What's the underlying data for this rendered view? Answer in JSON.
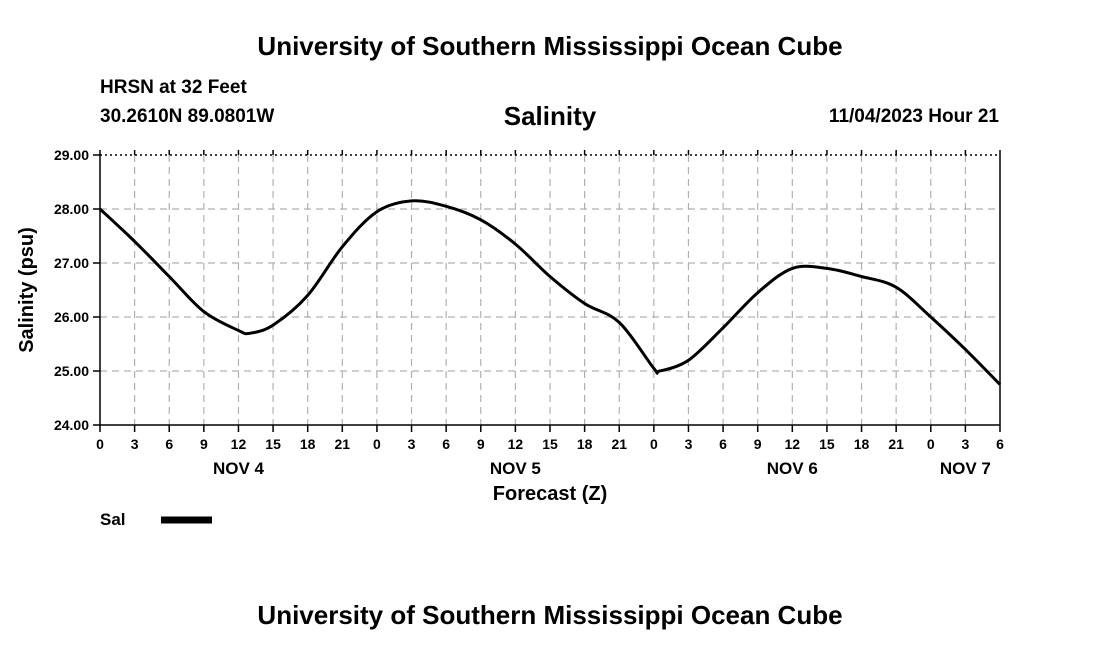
{
  "header": {
    "title": "University of Southern Mississippi Ocean Cube",
    "station": "HRSN at 32 Feet",
    "coords": "30.2610N  89.0801W",
    "timestamp": "11/04/2023 Hour 21"
  },
  "footer": {
    "title": "University of Southern Mississippi Ocean Cube"
  },
  "chart_data": {
    "type": "line",
    "title": "Salinity",
    "xlabel": "Forecast (Z)",
    "ylabel": "Salinity (psu)",
    "ylim": [
      24.0,
      29.0
    ],
    "yticks": [
      "24.00",
      "25.00",
      "26.00",
      "27.00",
      "28.00",
      "29.00"
    ],
    "xlim_hours": [
      0,
      78
    ],
    "x_tick_labels": [
      "0",
      "3",
      "6",
      "9",
      "12",
      "15",
      "18",
      "21",
      "0",
      "3",
      "6",
      "9",
      "12",
      "15",
      "18",
      "21",
      "0",
      "3",
      "6",
      "9",
      "12",
      "15",
      "18",
      "21",
      "0",
      "3",
      "6"
    ],
    "day_labels": [
      {
        "label": "NOV 4",
        "hour": 12
      },
      {
        "label": "NOV 5",
        "hour": 36
      },
      {
        "label": "NOV 6",
        "hour": 60
      },
      {
        "label": "NOV 7",
        "hour": 75
      }
    ],
    "grid": true,
    "line_color": "#000000",
    "series": [
      {
        "name": "Sal",
        "x": [
          0,
          3,
          6,
          9,
          12,
          13,
          15,
          18,
          21,
          24,
          27,
          30,
          33,
          36,
          39,
          42,
          45,
          48,
          48.5,
          51,
          54,
          57,
          60,
          63,
          66,
          69,
          72,
          75,
          78
        ],
        "y": [
          28.0,
          27.4,
          26.75,
          26.1,
          25.75,
          25.7,
          25.85,
          26.4,
          27.3,
          27.95,
          28.15,
          28.05,
          27.8,
          27.35,
          26.75,
          26.25,
          25.9,
          25.05,
          25.0,
          25.2,
          25.8,
          26.45,
          26.9,
          26.9,
          26.75,
          26.55,
          26.0,
          25.4,
          24.75
        ]
      }
    ]
  }
}
